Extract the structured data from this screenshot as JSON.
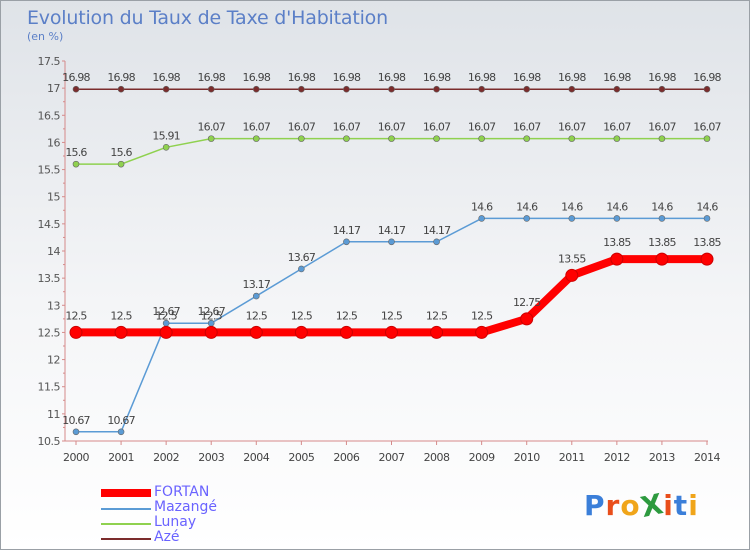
{
  "title": "Evolution du Taux de Taxe d'Habitation",
  "subtitle": "(en %)",
  "logo": {
    "text": "ProXiti",
    "letters": [
      "P",
      "r",
      "o",
      "X",
      "i",
      "t",
      "i"
    ],
    "colors": [
      "#3b7fd9",
      "#e94e1b",
      "#f0a51a",
      "#2d9a3f",
      "#e94e1b",
      "#3b7fd9",
      "#f0a51a"
    ]
  },
  "chart_data": {
    "type": "line",
    "title": "Evolution du Taux de Taxe d'Habitation",
    "ylabel": "(en %)",
    "xlabel": "",
    "ylim": [
      10.5,
      17.5
    ],
    "yticks": [
      "10.5",
      "11",
      "11.5",
      "12",
      "12.5",
      "13",
      "13.5",
      "14",
      "14.5",
      "15",
      "15.5",
      "16",
      "16.5",
      "17",
      "17.5"
    ],
    "categories": [
      "2000",
      "2001",
      "2002",
      "2003",
      "2004",
      "2005",
      "2006",
      "2007",
      "2008",
      "2009",
      "2010",
      "2011",
      "2012",
      "2013",
      "2014"
    ],
    "legend_position": "bottom-left",
    "grid": false,
    "series": [
      {
        "name": "FORTAN",
        "color": "#ff0000",
        "width": "thick",
        "values": [
          12.5,
          12.5,
          12.5,
          12.5,
          12.5,
          12.5,
          12.5,
          12.5,
          12.5,
          12.5,
          12.75,
          13.55,
          13.85,
          13.85,
          13.85
        ],
        "labels": [
          "12.5",
          "12.5",
          "12.5",
          "12.5",
          "12.5",
          "12.5",
          "12.5",
          "12.5",
          "12.5",
          "12.5",
          "12.75",
          "13.55",
          "13.85",
          "13.85",
          "13.85"
        ]
      },
      {
        "name": "Mazangé",
        "color": "#5b9bd5",
        "width": "thin",
        "values": [
          10.67,
          10.67,
          12.67,
          12.67,
          13.17,
          13.67,
          14.17,
          14.17,
          14.17,
          14.6,
          14.6,
          14.6,
          14.6,
          14.6,
          14.6
        ],
        "labels": [
          "10.67",
          "10.67",
          "12.67",
          "12.67",
          "13.17",
          "13.67",
          "14.17",
          "14.17",
          "14.17",
          "14.6",
          "14.6",
          "14.6",
          "14.6",
          "14.6",
          "14.6"
        ]
      },
      {
        "name": "Lunay",
        "color": "#8fd14f",
        "width": "thin",
        "values": [
          15.6,
          15.6,
          15.91,
          16.07,
          16.07,
          16.07,
          16.07,
          16.07,
          16.07,
          16.07,
          16.07,
          16.07,
          16.07,
          16.07,
          16.07
        ],
        "labels": [
          "15.6",
          "15.6",
          "15.91",
          "16.07",
          "16.07",
          "16.07",
          "16.07",
          "16.07",
          "16.07",
          "16.07",
          "16.07",
          "16.07",
          "16.07",
          "16.07",
          "16.07"
        ]
      },
      {
        "name": "Azé",
        "color": "#7b2c2c",
        "width": "thin",
        "values": [
          16.98,
          16.98,
          16.98,
          16.98,
          16.98,
          16.98,
          16.98,
          16.98,
          16.98,
          16.98,
          16.98,
          16.98,
          16.98,
          16.98,
          16.98
        ],
        "labels": [
          "16.98",
          "16.98",
          "16.98",
          "16.98",
          "16.98",
          "16.98",
          "16.98",
          "16.98",
          "16.98",
          "16.98",
          "16.98",
          "16.98",
          "16.98",
          "16.98",
          "16.98"
        ]
      }
    ]
  }
}
